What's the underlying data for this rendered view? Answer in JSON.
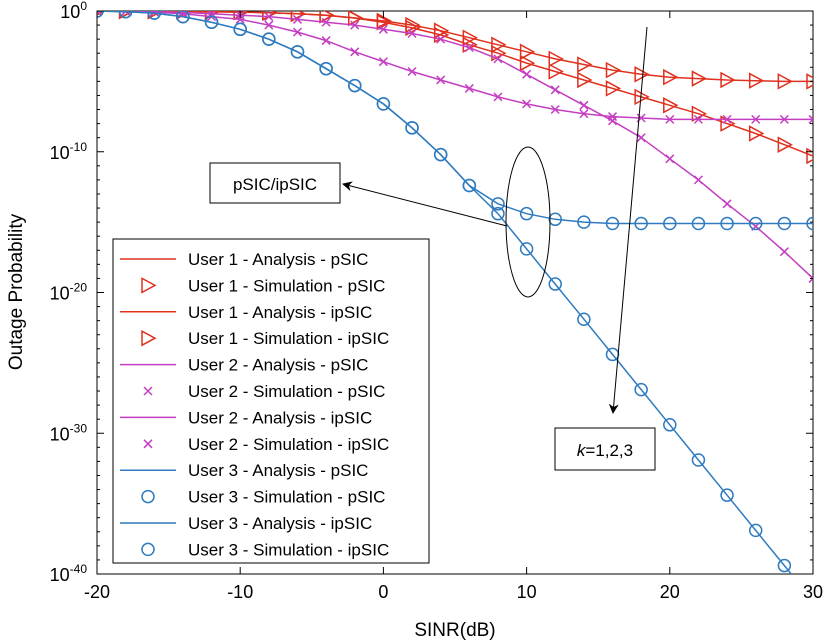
{
  "chart_data": {
    "type": "line",
    "title": "",
    "xlabel": "SINR(dB)",
    "ylabel": "Outage Probability",
    "xlim": [
      -20,
      30
    ],
    "ylim_log10": [
      -40,
      0
    ],
    "yscale": "log",
    "grid": false,
    "legend_position": "left-middle",
    "x_ticks": [
      -20,
      -10,
      0,
      10,
      20,
      30
    ],
    "x_tick_labels": [
      "-20",
      "-10",
      "0",
      "10",
      "20",
      "30"
    ],
    "y_ticks_log10": [
      0,
      -10,
      -20,
      -30,
      -40
    ],
    "y_tick_labels": [
      {
        "base": "10",
        "exp": "0"
      },
      {
        "base": "10",
        "exp": "-10"
      },
      {
        "base": "10",
        "exp": "-20"
      },
      {
        "base": "10",
        "exp": "-30"
      },
      {
        "base": "10",
        "exp": "-40"
      }
    ],
    "x": [
      -20,
      -18,
      -16,
      -14,
      -12,
      -10,
      -8,
      -6,
      -4,
      -2,
      0,
      2,
      4,
      6,
      8,
      10,
      12,
      14,
      16,
      18,
      20,
      22,
      24,
      26,
      28,
      30
    ],
    "series": [
      {
        "name": "User 1 - Analysis - pSIC",
        "kind": "analysis",
        "color": "#e0301e",
        "marker": "none",
        "log10_values": [
          0,
          -0.01,
          -0.02,
          -0.03,
          -0.05,
          -0.08,
          -0.12,
          -0.2,
          -0.3,
          -0.5,
          -0.7,
          -1.0,
          -1.4,
          -1.9,
          -2.4,
          -2.9,
          -3.4,
          -3.8,
          -4.2,
          -4.5,
          -4.7,
          -4.8,
          -4.9,
          -4.95,
          -5.0,
          -5.0
        ]
      },
      {
        "name": "User 1 - Simulation - pSIC",
        "kind": "simulation",
        "color": "#e0301e",
        "marker": "triangle-right",
        "log10_values": [
          0,
          -0.01,
          -0.02,
          -0.03,
          -0.05,
          -0.08,
          -0.12,
          -0.2,
          -0.3,
          -0.5,
          -0.7,
          -1.0,
          -1.4,
          -1.9,
          -2.4,
          -2.9,
          -3.4,
          -3.8,
          -4.2,
          -4.5,
          -4.7,
          -4.8,
          -4.9,
          -4.95,
          -5.0,
          -5.0
        ]
      },
      {
        "name": "User 1 - Analysis - ipSIC",
        "kind": "analysis",
        "color": "#e0301e",
        "marker": "none",
        "log10_values": [
          0,
          -0.01,
          -0.02,
          -0.03,
          -0.05,
          -0.08,
          -0.12,
          -0.2,
          -0.3,
          -0.5,
          -0.8,
          -1.2,
          -1.7,
          -2.4,
          -3.0,
          -3.7,
          -4.3,
          -4.9,
          -5.5,
          -6.1,
          -6.7,
          -7.3,
          -8.0,
          -8.7,
          -9.5,
          -10.3
        ]
      },
      {
        "name": "User 1 - Simulation - ipSIC",
        "kind": "simulation",
        "color": "#e0301e",
        "marker": "triangle-right",
        "log10_values": [
          0,
          -0.01,
          -0.02,
          -0.03,
          -0.05,
          -0.08,
          -0.12,
          -0.2,
          -0.3,
          -0.5,
          -0.8,
          -1.2,
          -1.7,
          -2.4,
          -3.0,
          -3.7,
          -4.3,
          -4.9,
          -5.5,
          -6.1,
          -6.7,
          -7.3,
          -8.0,
          -8.7,
          -9.5,
          -10.3
        ]
      },
      {
        "name": "User 2 - Analysis - pSIC",
        "kind": "analysis",
        "color": "#c43ec2",
        "marker": "none",
        "log10_values": [
          0,
          -0.02,
          -0.05,
          -0.1,
          -0.2,
          -0.3,
          -0.4,
          -0.6,
          -0.8,
          -1.0,
          -1.3,
          -1.6,
          -2.0,
          -2.6,
          -3.4,
          -4.5,
          -5.6,
          -6.7,
          -7.8,
          -9.0,
          -10.5,
          -12.0,
          -13.7,
          -15.3,
          -17.1,
          -19.0
        ]
      },
      {
        "name": "User 2 - Simulation - pSIC",
        "kind": "simulation",
        "color": "#c43ec2",
        "marker": "x",
        "log10_values": [
          0,
          -0.02,
          -0.05,
          -0.1,
          -0.2,
          -0.3,
          -0.4,
          -0.6,
          -0.8,
          -1.0,
          -1.3,
          -1.6,
          -2.0,
          -2.6,
          -3.4,
          -4.5,
          -5.6,
          -6.7,
          -7.8,
          -9.0,
          -10.5,
          -12.0,
          -13.7,
          -15.3,
          -17.1,
          -19.0
        ]
      },
      {
        "name": "User 2 - Analysis - ipSIC",
        "kind": "analysis",
        "color": "#c43ec2",
        "marker": "none",
        "log10_values": [
          0,
          -0.02,
          -0.08,
          -0.2,
          -0.4,
          -0.6,
          -1.0,
          -1.5,
          -2.1,
          -2.9,
          -3.6,
          -4.3,
          -4.9,
          -5.5,
          -6.1,
          -6.6,
          -7.0,
          -7.3,
          -7.5,
          -7.6,
          -7.7,
          -7.7,
          -7.7,
          -7.7,
          -7.7,
          -7.7
        ]
      },
      {
        "name": "User 2 - Simulation - ipSIC",
        "kind": "simulation",
        "color": "#c43ec2",
        "marker": "x",
        "log10_values": [
          0,
          -0.02,
          -0.08,
          -0.2,
          -0.4,
          -0.6,
          -1.0,
          -1.5,
          -2.1,
          -2.9,
          -3.6,
          -4.3,
          -4.9,
          -5.5,
          -6.1,
          -6.6,
          -7.0,
          -7.3,
          -7.5,
          -7.6,
          -7.7,
          -7.7,
          -7.7,
          -7.7,
          -7.7,
          -7.7
        ]
      },
      {
        "name": "User 3 - Analysis - pSIC",
        "kind": "analysis",
        "color": "#2f7bbf",
        "marker": "none",
        "log10_values": [
          0,
          -0.05,
          -0.15,
          -0.4,
          -0.8,
          -1.3,
          -2.0,
          -2.9,
          -4.1,
          -5.3,
          -6.6,
          -8.3,
          -10.2,
          -12.4,
          -14.4,
          -16.9,
          -19.4,
          -21.9,
          -24.4,
          -26.9,
          -29.4,
          -31.9,
          -34.4,
          -36.9,
          -39.4,
          -41.9
        ]
      },
      {
        "name": "User 3 - Simulation - pSIC",
        "kind": "simulation",
        "color": "#2f7bbf",
        "marker": "circle",
        "log10_values": [
          0,
          -0.05,
          -0.15,
          -0.4,
          -0.8,
          -1.3,
          -2.0,
          -2.9,
          -4.1,
          -5.3,
          -6.6,
          -8.3,
          -10.2,
          -12.4,
          -14.4,
          -16.9,
          -19.4,
          -21.9,
          -24.4,
          -26.9,
          -29.4,
          -31.9,
          -34.4,
          -36.9,
          -39.4,
          -41.9
        ]
      },
      {
        "name": "User 3 - Analysis - ipSIC",
        "kind": "analysis",
        "color": "#2f7bbf",
        "marker": "none",
        "log10_values": [
          0,
          -0.05,
          -0.15,
          -0.4,
          -0.8,
          -1.3,
          -2.0,
          -2.9,
          -4.1,
          -5.3,
          -6.6,
          -8.3,
          -10.2,
          -12.4,
          -13.7,
          -14.4,
          -14.8,
          -15.0,
          -15.1,
          -15.1,
          -15.1,
          -15.1,
          -15.1,
          -15.1,
          -15.1,
          -15.1
        ]
      },
      {
        "name": "User 3 - Simulation - ipSIC",
        "kind": "simulation",
        "color": "#2f7bbf",
        "marker": "circle",
        "log10_values": [
          0,
          -0.05,
          -0.15,
          -0.4,
          -0.8,
          -1.3,
          -2.0,
          -2.9,
          -4.1,
          -5.3,
          -6.6,
          -8.3,
          -10.2,
          -12.4,
          -13.7,
          -14.4,
          -14.8,
          -15.0,
          -15.1,
          -15.1,
          -15.1,
          -15.1,
          -15.1,
          -15.1,
          -15.1,
          -15.1
        ]
      }
    ],
    "annotations": [
      {
        "id": "psic_ipsic",
        "text": "pSIC/ipSIC"
      },
      {
        "id": "k_values",
        "text_italic": "k",
        "text": "=1,2,3"
      }
    ]
  }
}
